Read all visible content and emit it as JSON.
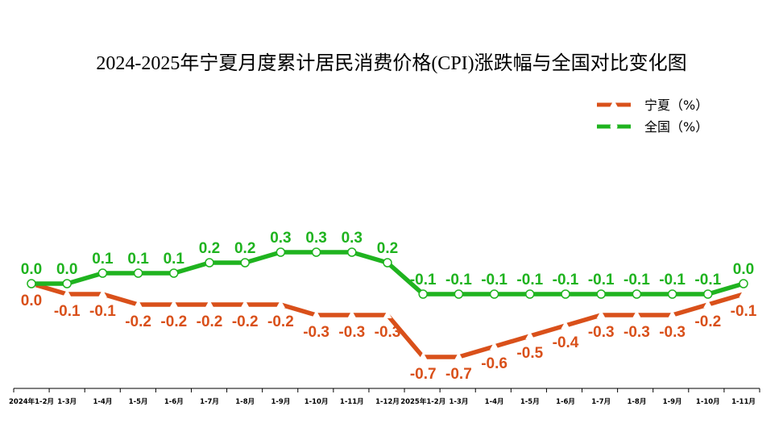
{
  "chart_data": {
    "type": "line",
    "title": "2024-2025年宁夏月度累计居民消费价格(CPI)涨跌幅与全国对比变化图",
    "categories": [
      "2024年1-2月",
      "1-3月",
      "1-4月",
      "1-5月",
      "1-6月",
      "1-7月",
      "1-8月",
      "1-9月",
      "1-10月",
      "1-11月",
      "1-12月",
      "2025年1-2月",
      "1-3月",
      "1-4月",
      "1-5月",
      "1-6月",
      "1-7月",
      "1-8月",
      "1-9月",
      "1-10月",
      "1-11月"
    ],
    "series": [
      {
        "name": "宁夏（%）",
        "color": "#d9501a",
        "marker": "triangle",
        "values": [
          0.0,
          -0.1,
          -0.1,
          -0.2,
          -0.2,
          -0.2,
          -0.2,
          -0.2,
          -0.3,
          -0.3,
          -0.3,
          -0.7,
          -0.7,
          -0.6,
          -0.5,
          -0.4,
          -0.3,
          -0.3,
          -0.3,
          -0.2,
          -0.1
        ],
        "labels": [
          "0.0",
          "-0.1",
          "-0.1",
          "-0.2",
          "-0.2",
          "-0.2",
          "-0.2",
          "-0.2",
          "-0.3",
          "-0.3",
          "-0.3",
          "-0.7",
          "-0.7",
          "-0.6",
          "-0.5",
          "-0.4",
          "-0.3",
          "-0.3",
          "-0.3",
          "-0.2",
          "-0.1"
        ]
      },
      {
        "name": "全国（%）",
        "color": "#1fb31f",
        "marker": "circle",
        "values": [
          0.0,
          0.0,
          0.1,
          0.1,
          0.1,
          0.2,
          0.2,
          0.3,
          0.3,
          0.3,
          0.2,
          -0.1,
          -0.1,
          -0.1,
          -0.1,
          -0.1,
          -0.1,
          -0.1,
          -0.1,
          -0.1,
          0.0
        ],
        "labels": [
          "0.0",
          "0.0",
          "0.1",
          "0.1",
          "0.1",
          "0.2",
          "0.2",
          "0.3",
          "0.3",
          "0.3",
          "0.2",
          "-0.1",
          "-0.1",
          "-0.1",
          "-0.1",
          "-0.1",
          "-0.1",
          "-0.1",
          "-0.1",
          "-0.1",
          "0.0"
        ]
      }
    ],
    "ylim": [
      -1.0,
      0.8
    ],
    "grid": false,
    "legend_position": "top-right"
  }
}
